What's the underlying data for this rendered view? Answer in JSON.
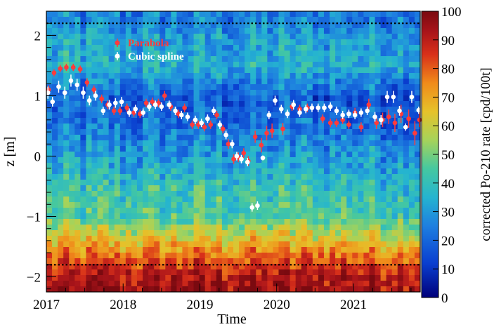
{
  "chart_data": {
    "type": "heatmap",
    "title": "",
    "xlabel": "Time",
    "ylabel": "z [m]",
    "colorbar_label": "corrected Po-210 rate [cpd/100t]",
    "xlim": [
      2017.0,
      2021.87
    ],
    "ylim": [
      -2.25,
      2.4
    ],
    "x_ticks": [
      {
        "value": 2017,
        "label": "2017"
      },
      {
        "value": 2018,
        "label": "2018"
      },
      {
        "value": 2019,
        "label": "2019"
      },
      {
        "value": 2020,
        "label": "2020"
      },
      {
        "value": 2021,
        "label": "2021"
      }
    ],
    "y_ticks": [
      {
        "value": 2,
        "label": "2"
      },
      {
        "value": 1,
        "label": "1"
      },
      {
        "value": 0,
        "label": "0"
      },
      {
        "value": -1,
        "label": "−1"
      },
      {
        "value": -2,
        "label": "−2"
      }
    ],
    "colorbar": {
      "range": [
        0,
        100
      ],
      "ticks": [
        "0",
        "10",
        "20",
        "30",
        "40",
        "50",
        "60",
        "70",
        "80",
        "90",
        "100"
      ]
    },
    "reference_lines_z": [
      2.2,
      -1.8
    ],
    "heatmap_profile": {
      "description_free": true,
      "z_rate_profile": [
        {
          "z": 2.3,
          "rate": 25
        },
        {
          "z": 1.9,
          "rate": 32
        },
        {
          "z": 1.5,
          "rate": 35
        },
        {
          "z": 1.0,
          "rate": 18
        },
        {
          "z": 0.5,
          "rate": 22
        },
        {
          "z": 0.0,
          "rate": 30
        },
        {
          "z": -0.5,
          "rate": 40
        },
        {
          "z": -1.0,
          "rate": 45
        },
        {
          "z": -1.4,
          "rate": 65
        },
        {
          "z": -1.7,
          "rate": 80
        },
        {
          "z": -2.0,
          "rate": 92
        },
        {
          "z": -2.2,
          "rate": 95
        }
      ]
    },
    "series": [
      {
        "name": "Parabola",
        "color": "#ff3b3b",
        "points": [
          {
            "x": 2017.03,
            "y": 1.1,
            "err": 0.07
          },
          {
            "x": 2017.1,
            "y": 1.38,
            "err": 0.06
          },
          {
            "x": 2017.18,
            "y": 1.45,
            "err": 0.06
          },
          {
            "x": 2017.26,
            "y": 1.47,
            "err": 0.06
          },
          {
            "x": 2017.35,
            "y": 1.47,
            "err": 0.06
          },
          {
            "x": 2017.44,
            "y": 1.44,
            "err": 0.06
          },
          {
            "x": 2017.53,
            "y": 1.22,
            "err": 0.07
          },
          {
            "x": 2017.62,
            "y": 1.1,
            "err": 0.07
          },
          {
            "x": 2017.72,
            "y": 0.95,
            "err": 0.07
          },
          {
            "x": 2017.8,
            "y": 0.85,
            "err": 0.07
          },
          {
            "x": 2017.88,
            "y": 0.75,
            "err": 0.07
          },
          {
            "x": 2017.96,
            "y": 0.75,
            "err": 0.07
          },
          {
            "x": 2018.05,
            "y": 0.8,
            "err": 0.07
          },
          {
            "x": 2018.14,
            "y": 0.72,
            "err": 0.07
          },
          {
            "x": 2018.22,
            "y": 0.7,
            "err": 0.07
          },
          {
            "x": 2018.3,
            "y": 0.88,
            "err": 0.07
          },
          {
            "x": 2018.38,
            "y": 0.9,
            "err": 0.07
          },
          {
            "x": 2018.46,
            "y": 0.88,
            "err": 0.07
          },
          {
            "x": 2018.54,
            "y": 1.0,
            "err": 0.08
          },
          {
            "x": 2018.62,
            "y": 0.82,
            "err": 0.07
          },
          {
            "x": 2018.72,
            "y": 0.7,
            "err": 0.07
          },
          {
            "x": 2018.8,
            "y": 0.8,
            "err": 0.07
          },
          {
            "x": 2018.9,
            "y": 0.52,
            "err": 0.07
          },
          {
            "x": 2018.98,
            "y": 0.52,
            "err": 0.07
          },
          {
            "x": 2019.06,
            "y": 0.48,
            "err": 0.07
          },
          {
            "x": 2019.14,
            "y": 0.52,
            "err": 0.07
          },
          {
            "x": 2019.22,
            "y": 0.68,
            "err": 0.07
          },
          {
            "x": 2019.3,
            "y": 0.45,
            "err": 0.07
          },
          {
            "x": 2019.37,
            "y": 0.2,
            "err": 0.08
          },
          {
            "x": 2019.44,
            "y": -0.05,
            "err": 0.08
          },
          {
            "x": 2019.5,
            "y": -0.02,
            "err": 0.08
          },
          {
            "x": 2019.57,
            "y": 0.05,
            "err": 0.08
          },
          {
            "x": 2019.63,
            "y": -0.08,
            "err": 0.08
          },
          {
            "x": 2019.72,
            "y": 0.32,
            "err": 0.1
          },
          {
            "x": 2019.8,
            "y": 0.18,
            "err": 0.12
          },
          {
            "x": 2019.87,
            "y": 0.38,
            "err": 0.12
          },
          {
            "x": 2019.94,
            "y": 0.42,
            "err": 0.12
          },
          {
            "x": 2020.08,
            "y": 0.45,
            "err": 0.1
          },
          {
            "x": 2020.2,
            "y": 0.82,
            "err": 0.07
          },
          {
            "x": 2020.3,
            "y": 0.78,
            "err": 0.07
          },
          {
            "x": 2020.4,
            "y": 0.8,
            "err": 0.07
          },
          {
            "x": 2020.6,
            "y": 0.62,
            "err": 0.07
          },
          {
            "x": 2020.7,
            "y": 0.55,
            "err": 0.07
          },
          {
            "x": 2020.78,
            "y": 0.55,
            "err": 0.07
          },
          {
            "x": 2020.86,
            "y": 0.6,
            "err": 0.07
          },
          {
            "x": 2020.94,
            "y": 0.52,
            "err": 0.07
          },
          {
            "x": 2021.02,
            "y": 0.72,
            "err": 0.08
          },
          {
            "x": 2021.1,
            "y": 0.48,
            "err": 0.08
          },
          {
            "x": 2021.2,
            "y": 0.85,
            "err": 0.1
          },
          {
            "x": 2021.3,
            "y": 0.55,
            "err": 0.1
          },
          {
            "x": 2021.38,
            "y": 0.6,
            "err": 0.12
          },
          {
            "x": 2021.46,
            "y": 0.65,
            "err": 0.12
          },
          {
            "x": 2021.54,
            "y": 0.55,
            "err": 0.15
          },
          {
            "x": 2021.62,
            "y": 0.7,
            "err": 0.15
          },
          {
            "x": 2021.72,
            "y": 0.62,
            "err": 0.15
          },
          {
            "x": 2021.8,
            "y": 0.38,
            "err": 0.2
          },
          {
            "x": 2021.86,
            "y": 0.6,
            "err": 0.12
          }
        ]
      },
      {
        "name": "Cubic spline",
        "color": "#ffffff",
        "points": [
          {
            "x": 2017.02,
            "y": 1.05,
            "err": 0.1
          },
          {
            "x": 2017.08,
            "y": 0.9,
            "err": 0.08
          },
          {
            "x": 2017.16,
            "y": 1.15,
            "err": 0.1
          },
          {
            "x": 2017.24,
            "y": 1.05,
            "err": 0.1
          },
          {
            "x": 2017.32,
            "y": 1.25,
            "err": 0.1
          },
          {
            "x": 2017.4,
            "y": 1.18,
            "err": 0.1
          },
          {
            "x": 2017.48,
            "y": 1.05,
            "err": 0.1
          },
          {
            "x": 2017.56,
            "y": 0.92,
            "err": 0.08
          },
          {
            "x": 2017.64,
            "y": 1.0,
            "err": 0.08
          },
          {
            "x": 2017.74,
            "y": 0.75,
            "err": 0.07
          },
          {
            "x": 2017.82,
            "y": 0.85,
            "err": 0.08
          },
          {
            "x": 2017.9,
            "y": 0.88,
            "err": 0.08
          },
          {
            "x": 2017.98,
            "y": 0.9,
            "err": 0.08
          },
          {
            "x": 2018.08,
            "y": 0.72,
            "err": 0.07
          },
          {
            "x": 2018.16,
            "y": 0.78,
            "err": 0.07
          },
          {
            "x": 2018.26,
            "y": 0.72,
            "err": 0.07
          },
          {
            "x": 2018.34,
            "y": 0.82,
            "err": 0.07
          },
          {
            "x": 2018.42,
            "y": 0.85,
            "err": 0.07
          },
          {
            "x": 2018.5,
            "y": 0.82,
            "err": 0.07
          },
          {
            "x": 2018.6,
            "y": 0.85,
            "err": 0.07
          },
          {
            "x": 2018.68,
            "y": 0.75,
            "err": 0.07
          },
          {
            "x": 2018.76,
            "y": 0.68,
            "err": 0.07
          },
          {
            "x": 2018.84,
            "y": 0.65,
            "err": 0.07
          },
          {
            "x": 2018.94,
            "y": 0.6,
            "err": 0.07
          },
          {
            "x": 2019.02,
            "y": 0.55,
            "err": 0.07
          },
          {
            "x": 2019.1,
            "y": 0.62,
            "err": 0.07
          },
          {
            "x": 2019.18,
            "y": 0.75,
            "err": 0.07
          },
          {
            "x": 2019.26,
            "y": 0.52,
            "err": 0.07
          },
          {
            "x": 2019.34,
            "y": 0.35,
            "err": 0.07
          },
          {
            "x": 2019.42,
            "y": 0.2,
            "err": 0.07
          },
          {
            "x": 2019.48,
            "y": 0.0,
            "err": 0.07
          },
          {
            "x": 2019.54,
            "y": -0.05,
            "err": 0.07
          },
          {
            "x": 2019.62,
            "y": -0.1,
            "err": 0.07
          },
          {
            "x": 2019.68,
            "y": -0.85,
            "err": 0.07
          },
          {
            "x": 2019.75,
            "y": -0.82,
            "err": 0.07
          },
          {
            "x": 2019.82,
            "y": -0.03,
            "err": 0.04
          },
          {
            "x": 2019.9,
            "y": 0.68,
            "err": 0.07
          },
          {
            "x": 2019.98,
            "y": 0.92,
            "err": 0.08
          },
          {
            "x": 2020.06,
            "y": 0.78,
            "err": 0.07
          },
          {
            "x": 2020.14,
            "y": 0.7,
            "err": 0.07
          },
          {
            "x": 2020.22,
            "y": 0.85,
            "err": 0.08
          },
          {
            "x": 2020.3,
            "y": 0.72,
            "err": 0.07
          },
          {
            "x": 2020.38,
            "y": 0.78,
            "err": 0.07
          },
          {
            "x": 2020.46,
            "y": 0.8,
            "err": 0.07
          },
          {
            "x": 2020.54,
            "y": 0.8,
            "err": 0.07
          },
          {
            "x": 2020.62,
            "y": 0.8,
            "err": 0.07
          },
          {
            "x": 2020.7,
            "y": 0.82,
            "err": 0.07
          },
          {
            "x": 2020.78,
            "y": 0.75,
            "err": 0.07
          },
          {
            "x": 2020.86,
            "y": 0.68,
            "err": 0.07
          },
          {
            "x": 2020.94,
            "y": 0.7,
            "err": 0.07
          },
          {
            "x": 2021.02,
            "y": 0.68,
            "err": 0.07
          },
          {
            "x": 2021.1,
            "y": 0.72,
            "err": 0.07
          },
          {
            "x": 2021.18,
            "y": 0.75,
            "err": 0.07
          },
          {
            "x": 2021.28,
            "y": 0.65,
            "err": 0.08
          },
          {
            "x": 2021.36,
            "y": 0.6,
            "err": 0.08
          },
          {
            "x": 2021.44,
            "y": 0.98,
            "err": 0.1
          },
          {
            "x": 2021.52,
            "y": 0.98,
            "err": 0.1
          },
          {
            "x": 2021.6,
            "y": 0.75,
            "err": 0.08
          },
          {
            "x": 2021.68,
            "y": 0.48,
            "err": 0.06
          },
          {
            "x": 2021.76,
            "y": 0.98,
            "err": 0.1
          },
          {
            "x": 2021.85,
            "y": 0.76,
            "err": 0.06
          }
        ]
      }
    ]
  }
}
